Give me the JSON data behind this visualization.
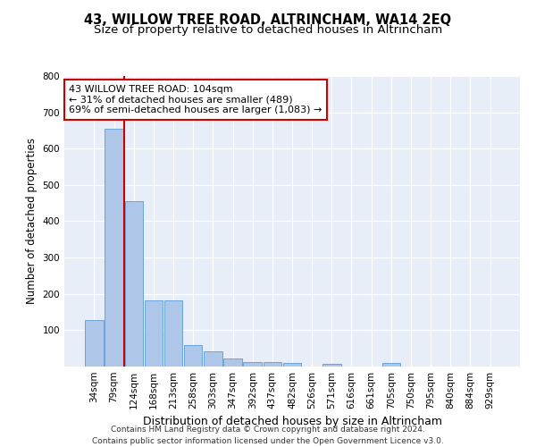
{
  "title": "43, WILLOW TREE ROAD, ALTRINCHAM, WA14 2EQ",
  "subtitle": "Size of property relative to detached houses in Altrincham",
  "xlabel": "Distribution of detached houses by size in Altrincham",
  "ylabel": "Number of detached properties",
  "categories": [
    "34sqm",
    "79sqm",
    "124sqm",
    "168sqm",
    "213sqm",
    "258sqm",
    "303sqm",
    "347sqm",
    "392sqm",
    "437sqm",
    "482sqm",
    "526sqm",
    "571sqm",
    "616sqm",
    "661sqm",
    "705sqm",
    "750sqm",
    "795sqm",
    "840sqm",
    "884sqm",
    "929sqm"
  ],
  "values": [
    127,
    655,
    455,
    182,
    182,
    60,
    43,
    22,
    12,
    13,
    11,
    0,
    8,
    0,
    0,
    9,
    0,
    0,
    0,
    0,
    0
  ],
  "bar_color": "#aec6e8",
  "bar_edge_color": "#5b9bd5",
  "vline_x": 1.5,
  "vline_color": "#cc0000",
  "annotation_text": "43 WILLOW TREE ROAD: 104sqm\n← 31% of detached houses are smaller (489)\n69% of semi-detached houses are larger (1,083) →",
  "annotation_box_color": "#ffffff",
  "annotation_box_edge": "#cc0000",
  "ylim": [
    0,
    800
  ],
  "yticks": [
    0,
    100,
    200,
    300,
    400,
    500,
    600,
    700,
    800
  ],
  "bg_color": "#e8eef8",
  "grid_color": "#ffffff",
  "footer": "Contains HM Land Registry data © Crown copyright and database right 2024.\nContains public sector information licensed under the Open Government Licence v3.0.",
  "title_fontsize": 10.5,
  "subtitle_fontsize": 9.5,
  "xlabel_fontsize": 9,
  "ylabel_fontsize": 8.5,
  "tick_fontsize": 7.5,
  "annotation_fontsize": 8,
  "footer_fontsize": 6.5
}
